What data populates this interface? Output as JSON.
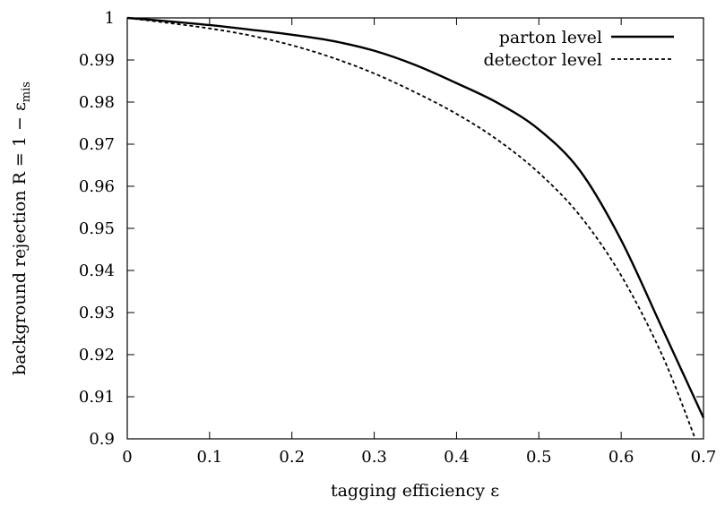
{
  "chart_data": {
    "type": "line",
    "xlabel": "tagging efficiency ε",
    "ylabel": "background rejection R = 1 − ε",
    "ylabel_subscript": "mis",
    "xlim": [
      0,
      0.7
    ],
    "ylim": [
      0.9,
      1.0
    ],
    "xticks": [
      0,
      0.1,
      0.2,
      0.3,
      0.4,
      0.5,
      0.6,
      0.7
    ],
    "xtick_labels": [
      "0",
      "0.1",
      "0.2",
      "0.3",
      "0.4",
      "0.5",
      "0.6",
      "0.7"
    ],
    "yticks": [
      0.9,
      0.91,
      0.92,
      0.93,
      0.94,
      0.95,
      0.96,
      0.97,
      0.98,
      0.99,
      1.0
    ],
    "ytick_labels": [
      "0.9",
      "0.91",
      "0.92",
      "0.93",
      "0.94",
      "0.95",
      "0.96",
      "0.97",
      "0.98",
      "0.99",
      "1"
    ],
    "grid": false,
    "legend_position": "top-right",
    "series": [
      {
        "name": "parton level",
        "style": "solid",
        "x": [
          0,
          0.05,
          0.1,
          0.15,
          0.2,
          0.25,
          0.3,
          0.35,
          0.4,
          0.45,
          0.5,
          0.55,
          0.6,
          0.65,
          0.7
        ],
        "y": [
          1.0,
          0.9992,
          0.9983,
          0.9972,
          0.996,
          0.9945,
          0.9922,
          0.9888,
          0.9845,
          0.9798,
          0.9735,
          0.9637,
          0.9472,
          0.9262,
          0.905
        ]
      },
      {
        "name": "detector level",
        "style": "dashed",
        "x": [
          0,
          0.05,
          0.1,
          0.15,
          0.2,
          0.25,
          0.3,
          0.35,
          0.4,
          0.45,
          0.5,
          0.55,
          0.6,
          0.65,
          0.69
        ],
        "y": [
          1.0,
          0.9988,
          0.9975,
          0.9958,
          0.9935,
          0.9905,
          0.9868,
          0.9823,
          0.9772,
          0.971,
          0.9632,
          0.953,
          0.9388,
          0.9198,
          0.9
        ]
      }
    ]
  }
}
